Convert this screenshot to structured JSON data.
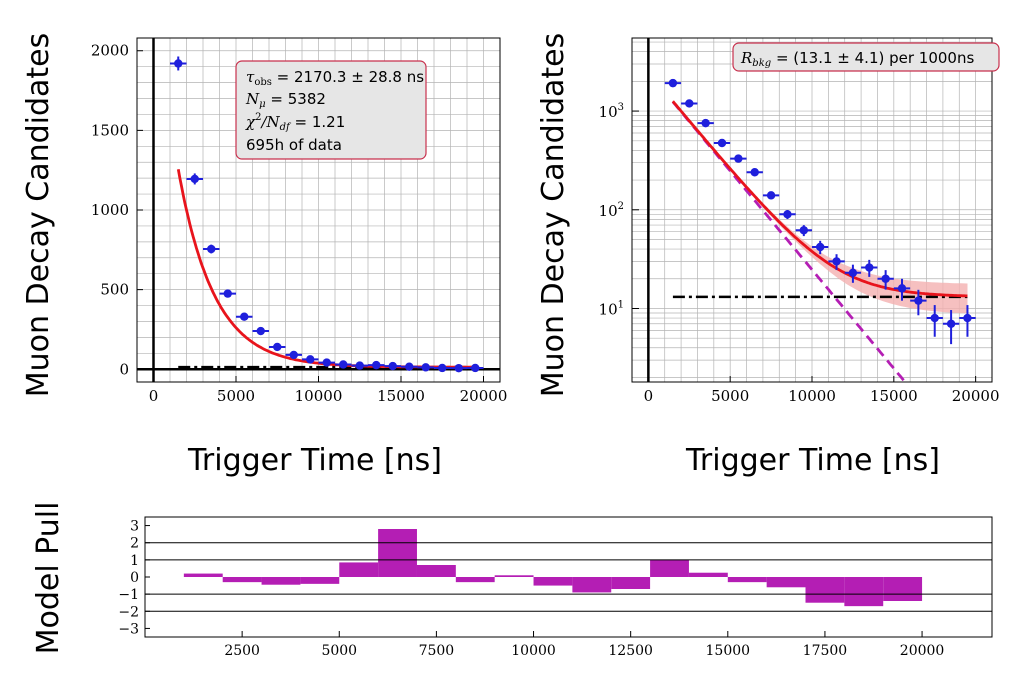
{
  "chart_data": [
    {
      "type": "scatter",
      "panel": "linear",
      "xlabel": "Trigger Time [ns]",
      "ylabel": "Muon Decay Candidates",
      "xlim": [
        -1000,
        21000
      ],
      "ylim": [
        -80,
        2080
      ],
      "yscale": "linear",
      "xticks": [
        0,
        5000,
        10000,
        15000,
        20000
      ],
      "yticks": [
        0,
        500,
        1000,
        1500,
        2000
      ],
      "grid": true,
      "data": {
        "x": [
          1500,
          2500,
          3500,
          4500,
          5500,
          6500,
          7500,
          8500,
          9500,
          10500,
          11500,
          12500,
          13500,
          14500,
          15500,
          16500,
          17500,
          18500,
          19500
        ],
        "y": [
          1920,
          1195,
          755,
          475,
          330,
          240,
          140,
          90,
          62,
          42,
          30,
          23,
          26,
          20,
          16,
          12,
          8,
          7,
          8
        ]
      },
      "background_level": 13.1,
      "fit": {
        "N": 5382,
        "tau": 2170.3,
        "bkg": 13.1
      },
      "annotation": {
        "tau_label": "τ",
        "tau_sub": "obs",
        "tau_text": " = 2170.3 ± 28.8 ns",
        "n_label": "N",
        "n_sub": "μ",
        "n_text": " = 5382",
        "chi_label": "χ",
        "chi_sup": "2",
        "chi_mid": "/N",
        "chi_sub": "df",
        "chi_text": " = 1.21",
        "hours_text": "695h of data"
      },
      "colors": {
        "data": "#1f1fdc",
        "fit": "#e8141c",
        "bkg": "#000000",
        "box_edge": "#c8314e",
        "box_fill": "#e6e6e6"
      }
    },
    {
      "type": "scatter",
      "panel": "log",
      "xlabel": "Trigger Time [ns]",
      "ylabel": "Muon Decay Candidates",
      "xlim": [
        -1000,
        21000
      ],
      "ylim": [
        1.8,
        5500
      ],
      "yscale": "log",
      "xticks": [
        0,
        5000,
        10000,
        15000,
        20000
      ],
      "yticks": [
        10,
        100,
        1000
      ],
      "ytick_labels": [
        {
          "base": "10",
          "exp": "1"
        },
        {
          "base": "10",
          "exp": "2"
        },
        {
          "base": "10",
          "exp": "3"
        }
      ],
      "grid": true,
      "data": {
        "x": [
          1500,
          2500,
          3500,
          4500,
          5500,
          6500,
          7500,
          8500,
          9500,
          10500,
          11500,
          12500,
          13500,
          14500,
          15500,
          16500,
          17500,
          18500,
          19500
        ],
        "y": [
          1920,
          1195,
          755,
          475,
          330,
          240,
          140,
          90,
          62,
          42,
          30,
          23,
          26,
          20,
          16,
          12,
          8,
          7,
          8
        ]
      },
      "annotation": {
        "r_label": "R",
        "r_sub": "bkg",
        "r_text": " = (13.1 ± 4.1) per 1000ns"
      },
      "colors": {
        "data": "#1f1fdc",
        "fit": "#e8141c",
        "band": "#f4b0b0",
        "bkg": "#000000",
        "signal": "#b41eb4",
        "box_edge": "#c8314e",
        "box_fill": "#e6e6e6"
      }
    },
    {
      "type": "bar",
      "panel": "pull",
      "ylabel": "Model Pull",
      "xlim": [
        0,
        21800
      ],
      "ylim": [
        -3.5,
        3.5
      ],
      "xticks": [
        2500,
        5000,
        7500,
        10000,
        12500,
        15000,
        17500,
        20000
      ],
      "yticks": [
        -3,
        -2,
        -1,
        0,
        1,
        2,
        3
      ],
      "hlines": [
        -2,
        -1,
        1,
        2
      ],
      "bins": {
        "edges": [
          1000,
          2000,
          3000,
          4000,
          5000,
          6000,
          7000,
          8000,
          9000,
          10000,
          11000,
          12000,
          13000,
          14000,
          15000,
          16000,
          17000,
          18000,
          19000,
          20000
        ],
        "values": [
          0.2,
          -0.3,
          -0.45,
          -0.4,
          0.85,
          2.8,
          0.7,
          -0.3,
          0.1,
          -0.5,
          -0.9,
          -0.7,
          1.0,
          0.25,
          -0.3,
          -0.6,
          -1.5,
          -1.7,
          -1.4
        ]
      },
      "colors": {
        "bars": "#b41eb4"
      }
    }
  ]
}
